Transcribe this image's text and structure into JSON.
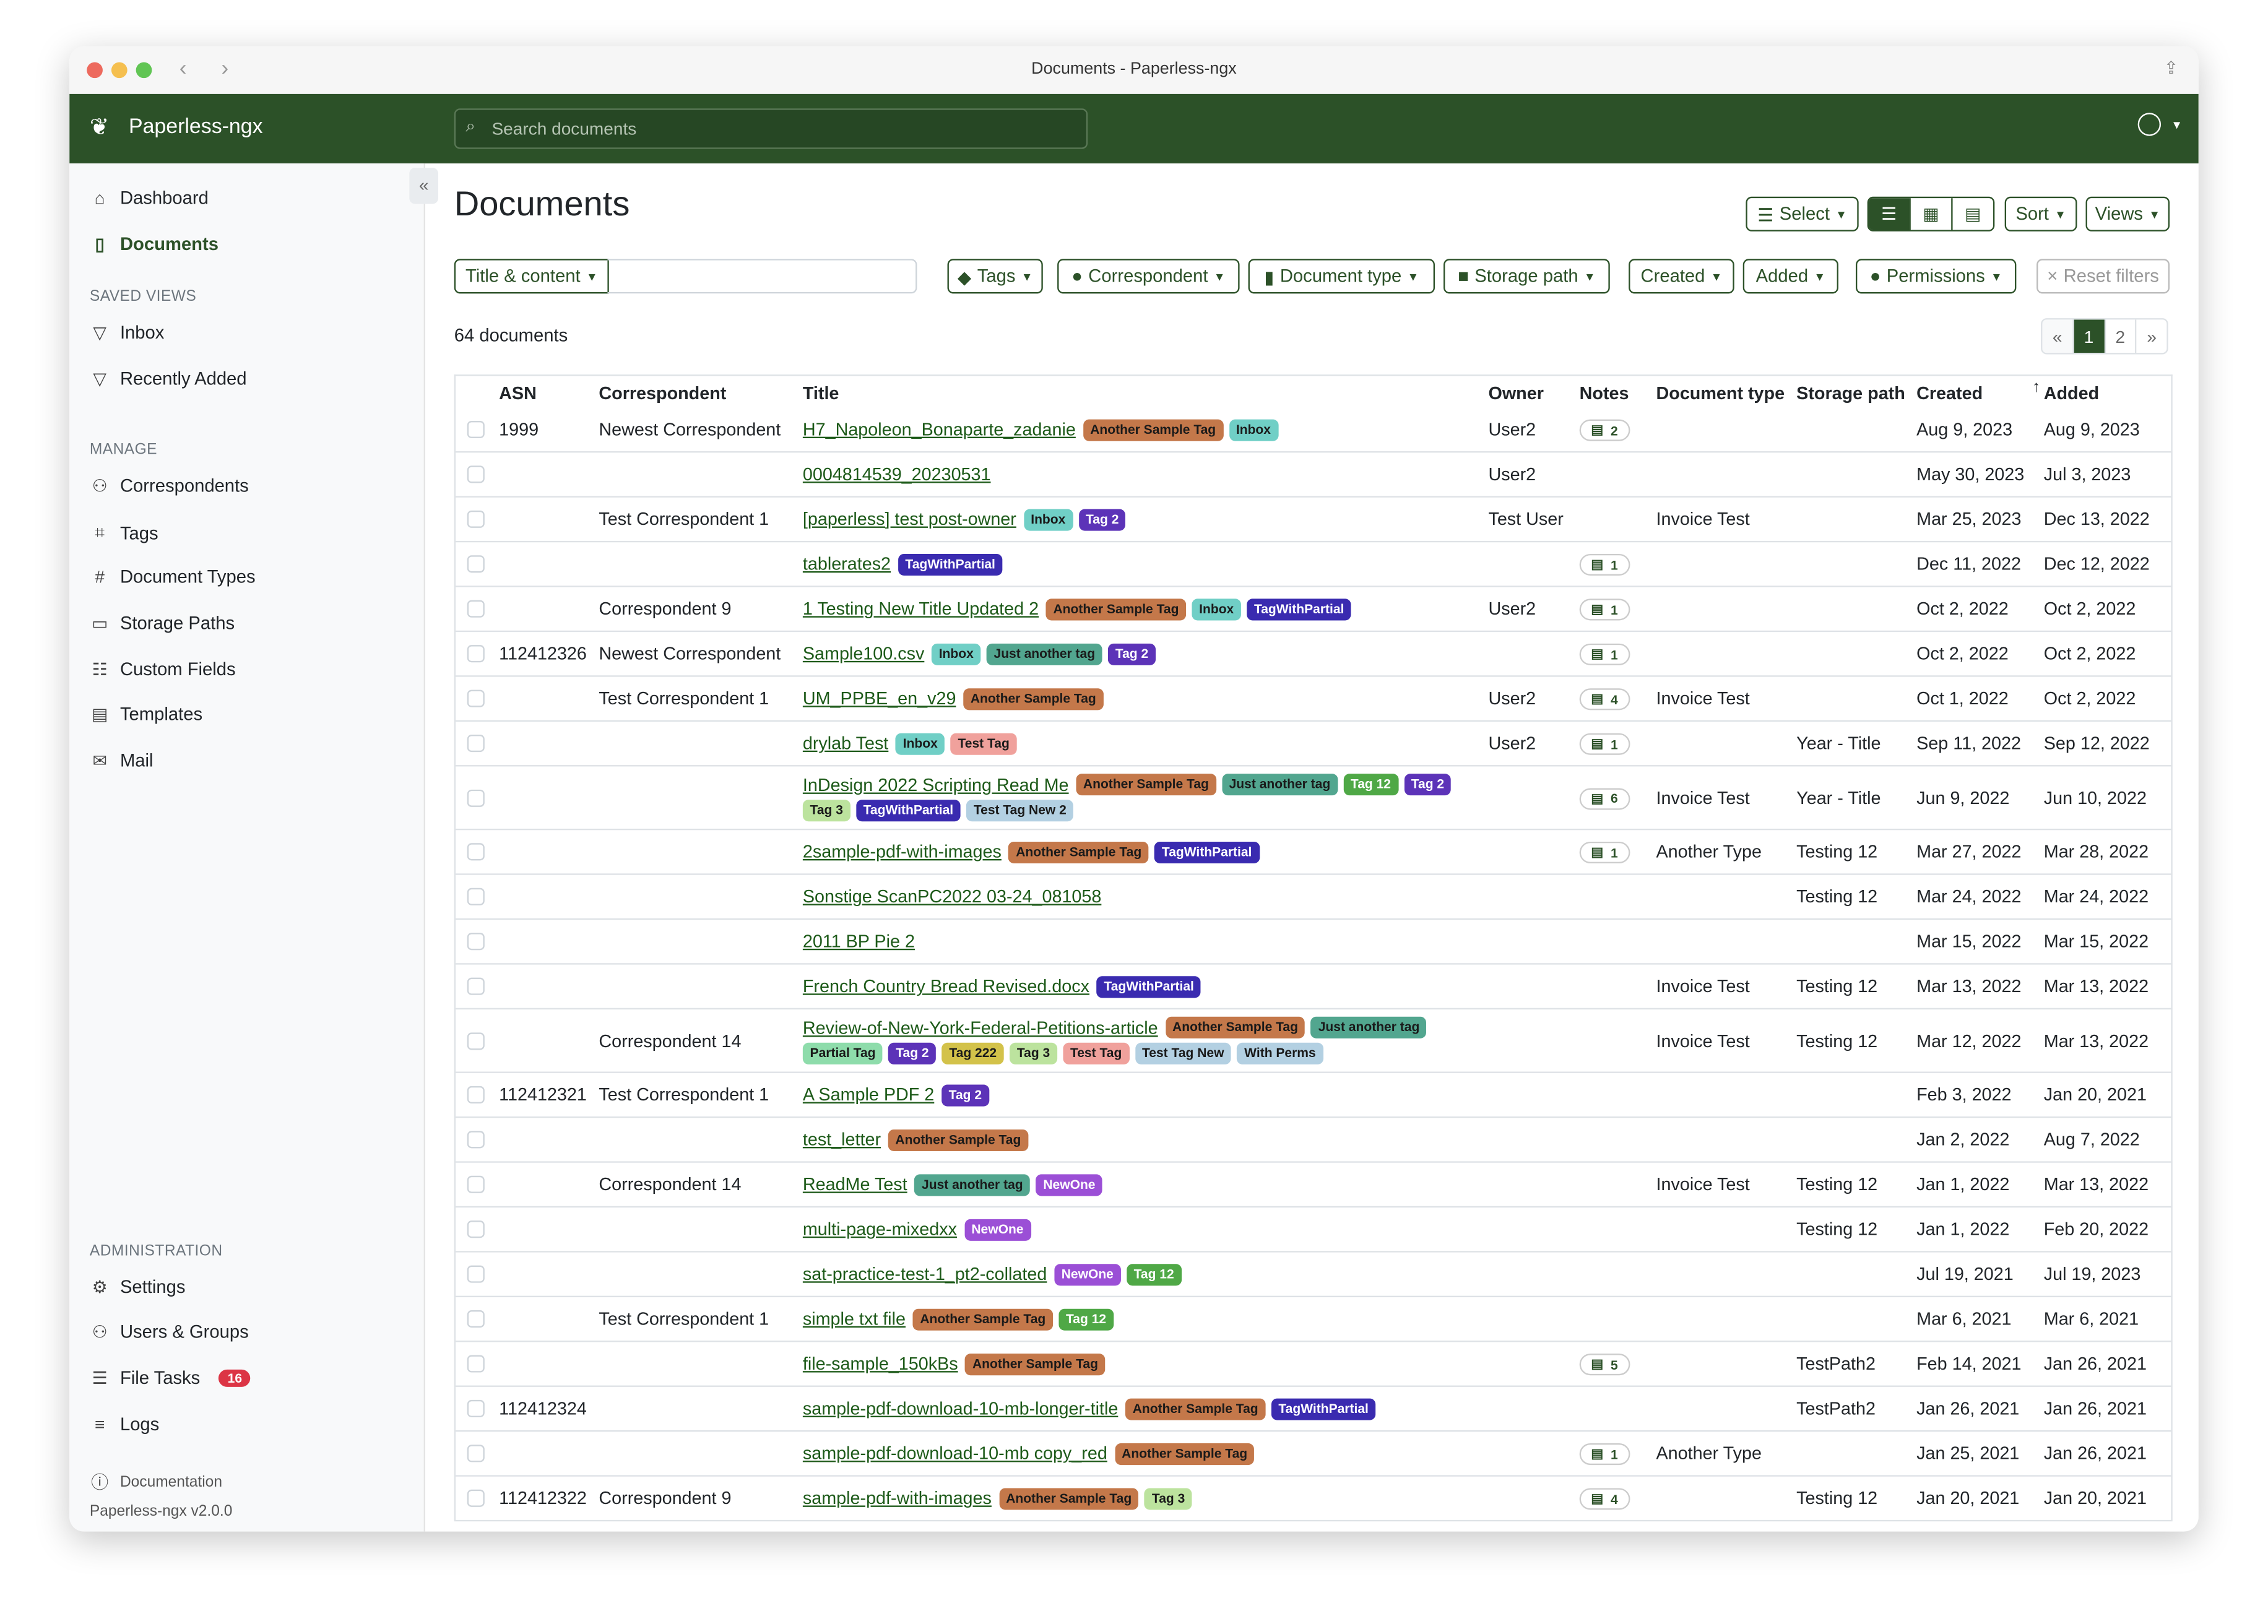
{
  "window": {
    "title": "Documents - Paperless-ngx"
  },
  "header": {
    "brand": "Paperless-ngx",
    "search_placeholder": "Search documents"
  },
  "sidebar": {
    "main": [
      {
        "label": "Dashboard",
        "icon": "house-icon"
      },
      {
        "label": "Documents",
        "icon": "file-icon",
        "active": true
      }
    ],
    "saved_views_heading": "SAVED VIEWS",
    "saved_views": [
      {
        "label": "Inbox",
        "icon": "funnel-icon"
      },
      {
        "label": "Recently Added",
        "icon": "funnel-icon"
      }
    ],
    "manage_heading": "MANAGE",
    "manage": [
      {
        "label": "Correspondents",
        "icon": "person-icon"
      },
      {
        "label": "Tags",
        "icon": "tags-icon"
      },
      {
        "label": "Document Types",
        "icon": "hash-icon"
      },
      {
        "label": "Storage Paths",
        "icon": "folder-icon"
      },
      {
        "label": "Custom Fields",
        "icon": "ui-radios-icon"
      },
      {
        "label": "Templates",
        "icon": "file-text-icon"
      },
      {
        "label": "Mail",
        "icon": "envelope-icon"
      }
    ],
    "admin_heading": "ADMINISTRATION",
    "admin": [
      {
        "label": "Settings",
        "icon": "gear-icon"
      },
      {
        "label": "Users & Groups",
        "icon": "people-icon"
      },
      {
        "label": "File Tasks",
        "icon": "list-icon",
        "badge": "16"
      },
      {
        "label": "Logs",
        "icon": "text-lines-icon"
      }
    ],
    "documentation": "Documentation",
    "version": "Paperless-ngx v2.0.0"
  },
  "page": {
    "title": "Documents",
    "count": "64 documents"
  },
  "toolbar": {
    "select": "Select",
    "sort": "Sort",
    "views": "Views"
  },
  "filters": {
    "text_mode": "Title & content",
    "text_value": "",
    "tags": "Tags",
    "correspondent": "Correspondent",
    "document_type": "Document type",
    "storage_path": "Storage path",
    "created": "Created",
    "added": "Added",
    "permissions": "Permissions",
    "reset": "Reset filters"
  },
  "pagination": {
    "prev": "«",
    "pages": [
      "1",
      "2"
    ],
    "current": "1",
    "next": "»"
  },
  "table": {
    "columns": [
      "ASN",
      "Correspondent",
      "Title",
      "Owner",
      "Notes",
      "Document type",
      "Storage path",
      "Created",
      "Added"
    ],
    "sorted_column": "Added",
    "rows": [
      {
        "asn": "1999",
        "correspondent": "Newest Correspondent",
        "title": "H7_Napoleon_Bonaparte_zadanie",
        "tags": [
          "Another Sample Tag",
          "Inbox"
        ],
        "owner": "User2",
        "notes": "2",
        "doctype": "",
        "storage": "",
        "created": "Aug 9, 2023",
        "added": "Aug 9, 2023"
      },
      {
        "asn": "",
        "correspondent": "",
        "title": "0004814539_20230531",
        "tags": [],
        "owner": "User2",
        "notes": "",
        "doctype": "",
        "storage": "",
        "created": "May 30, 2023",
        "added": "Jul 3, 2023"
      },
      {
        "asn": "",
        "correspondent": "Test Correspondent 1",
        "title": "[paperless] test post-owner",
        "tags": [
          "Inbox",
          "Tag 2"
        ],
        "owner": "Test User",
        "notes": "",
        "doctype": "Invoice Test",
        "storage": "",
        "created": "Mar 25, 2023",
        "added": "Dec 13, 2022"
      },
      {
        "asn": "",
        "correspondent": "",
        "title": "tablerates2",
        "tags": [
          "TagWithPartial"
        ],
        "owner": "",
        "notes": "1",
        "doctype": "",
        "storage": "",
        "created": "Dec 11, 2022",
        "added": "Dec 12, 2022"
      },
      {
        "asn": "",
        "correspondent": "Correspondent 9",
        "title": "1 Testing New Title Updated 2",
        "tags": [
          "Another Sample Tag",
          "Inbox",
          "TagWithPartial"
        ],
        "owner": "User2",
        "notes": "1",
        "doctype": "",
        "storage": "",
        "created": "Oct 2, 2022",
        "added": "Oct 2, 2022"
      },
      {
        "asn": "112412326",
        "correspondent": "Newest Correspondent",
        "title": "Sample100.csv",
        "tags": [
          "Inbox",
          "Just another tag",
          "Tag 2"
        ],
        "owner": "",
        "notes": "1",
        "doctype": "",
        "storage": "",
        "created": "Oct 2, 2022",
        "added": "Oct 2, 2022"
      },
      {
        "asn": "",
        "correspondent": "Test Correspondent 1",
        "title": "UM_PPBE_en_v29",
        "tags": [
          "Another Sample Tag"
        ],
        "owner": "User2",
        "notes": "4",
        "doctype": "Invoice Test",
        "storage": "",
        "created": "Oct 1, 2022",
        "added": "Oct 2, 2022"
      },
      {
        "asn": "",
        "correspondent": "",
        "title": "drylab Test",
        "tags": [
          "Inbox",
          "Test Tag"
        ],
        "owner": "User2",
        "notes": "1",
        "doctype": "",
        "storage": "Year - Title",
        "created": "Sep 11, 2022",
        "added": "Sep 12, 2022"
      },
      {
        "asn": "",
        "correspondent": "",
        "title": "InDesign 2022 Scripting Read Me",
        "tags": [
          "Another Sample Tag",
          "Just another tag",
          "Tag 12",
          "Tag 2",
          "Tag 3",
          "TagWithPartial",
          "Test Tag New 2"
        ],
        "owner": "",
        "notes": "6",
        "doctype": "Invoice Test",
        "storage": "Year - Title",
        "created": "Jun 9, 2022",
        "added": "Jun 10, 2022"
      },
      {
        "asn": "",
        "correspondent": "",
        "title": "2sample-pdf-with-images",
        "tags": [
          "Another Sample Tag",
          "TagWithPartial"
        ],
        "owner": "",
        "notes": "1",
        "doctype": "Another Type",
        "storage": "Testing 12",
        "created": "Mar 27, 2022",
        "added": "Mar 28, 2022"
      },
      {
        "asn": "",
        "correspondent": "",
        "title": "Sonstige ScanPC2022 03-24_081058",
        "tags": [],
        "owner": "",
        "notes": "",
        "doctype": "",
        "storage": "Testing 12",
        "created": "Mar 24, 2022",
        "added": "Mar 24, 2022"
      },
      {
        "asn": "",
        "correspondent": "",
        "title": "2011 BP Pie 2",
        "tags": [],
        "owner": "",
        "notes": "",
        "doctype": "",
        "storage": "",
        "created": "Mar 15, 2022",
        "added": "Mar 15, 2022"
      },
      {
        "asn": "",
        "correspondent": "",
        "title": "French Country Bread Revised.docx",
        "tags": [
          "TagWithPartial"
        ],
        "owner": "",
        "notes": "",
        "doctype": "Invoice Test",
        "storage": "Testing 12",
        "created": "Mar 13, 2022",
        "added": "Mar 13, 2022"
      },
      {
        "asn": "",
        "correspondent": "Correspondent 14",
        "title": "Review-of-New-York-Federal-Petitions-article",
        "tags": [
          "Another Sample Tag",
          "Just another tag",
          "Partial Tag",
          "Tag 2",
          "Tag 222",
          "Tag 3",
          "Test Tag",
          "Test Tag New",
          "With Perms"
        ],
        "owner": "",
        "notes": "",
        "doctype": "Invoice Test",
        "storage": "Testing 12",
        "created": "Mar 12, 2022",
        "added": "Mar 13, 2022"
      },
      {
        "asn": "112412321",
        "correspondent": "Test Correspondent 1",
        "title": "A Sample PDF 2",
        "tags": [
          "Tag 2"
        ],
        "owner": "",
        "notes": "",
        "doctype": "",
        "storage": "",
        "created": "Feb 3, 2022",
        "added": "Jan 20, 2021"
      },
      {
        "asn": "",
        "correspondent": "",
        "title": "test_letter",
        "tags": [
          "Another Sample Tag"
        ],
        "owner": "",
        "notes": "",
        "doctype": "",
        "storage": "",
        "created": "Jan 2, 2022",
        "added": "Aug 7, 2022"
      },
      {
        "asn": "",
        "correspondent": "Correspondent 14",
        "title": "ReadMe Test",
        "tags": [
          "Just another tag",
          "NewOne"
        ],
        "owner": "",
        "notes": "",
        "doctype": "Invoice Test",
        "storage": "Testing 12",
        "created": "Jan 1, 2022",
        "added": "Mar 13, 2022"
      },
      {
        "asn": "",
        "correspondent": "",
        "title": "multi-page-mixedxx",
        "tags": [
          "NewOne"
        ],
        "owner": "",
        "notes": "",
        "doctype": "",
        "storage": "Testing 12",
        "created": "Jan 1, 2022",
        "added": "Feb 20, 2022"
      },
      {
        "asn": "",
        "correspondent": "",
        "title": "sat-practice-test-1_pt2-collated",
        "tags": [
          "NewOne",
          "Tag 12"
        ],
        "owner": "",
        "notes": "",
        "doctype": "",
        "storage": "",
        "created": "Jul 19, 2021",
        "added": "Jul 19, 2023"
      },
      {
        "asn": "",
        "correspondent": "Test Correspondent 1",
        "title": "simple txt file",
        "tags": [
          "Another Sample Tag",
          "Tag 12"
        ],
        "owner": "",
        "notes": "",
        "doctype": "",
        "storage": "",
        "created": "Mar 6, 2021",
        "added": "Mar 6, 2021"
      },
      {
        "asn": "",
        "correspondent": "",
        "title": "file-sample_150kBs",
        "tags": [
          "Another Sample Tag"
        ],
        "owner": "",
        "notes": "5",
        "doctype": "",
        "storage": "TestPath2",
        "created": "Feb 14, 2021",
        "added": "Jan 26, 2021"
      },
      {
        "asn": "112412324",
        "correspondent": "",
        "title": "sample-pdf-download-10-mb-longer-title",
        "tags": [
          "Another Sample Tag",
          "TagWithPartial"
        ],
        "owner": "",
        "notes": "",
        "doctype": "",
        "storage": "TestPath2",
        "created": "Jan 26, 2021",
        "added": "Jan 26, 2021"
      },
      {
        "asn": "",
        "correspondent": "",
        "title": "sample-pdf-download-10-mb copy_red",
        "tags": [
          "Another Sample Tag"
        ],
        "owner": "",
        "notes": "1",
        "doctype": "Another Type",
        "storage": "",
        "created": "Jan 25, 2021",
        "added": "Jan 26, 2021"
      },
      {
        "asn": "112412322",
        "correspondent": "Correspondent 9",
        "title": "sample-pdf-with-images",
        "tags": [
          "Another Sample Tag",
          "Tag 3"
        ],
        "owner": "",
        "notes": "4",
        "doctype": "",
        "storage": "Testing 12",
        "created": "Jan 20, 2021",
        "added": "Jan 20, 2021"
      }
    ]
  },
  "tag_colors": {
    "Another Sample Tag": {
      "bg": "#c4784a",
      "fg": "#1a1a1a"
    },
    "Inbox": {
      "bg": "#70cfc6",
      "fg": "#1a1a1a"
    },
    "Tag 2": {
      "bg": "#5c33b8",
      "fg": "#ffffff"
    },
    "TagWithPartial": {
      "bg": "#3a2bb0",
      "fg": "#ffffff"
    },
    "Just another tag": {
      "bg": "#52a68f",
      "fg": "#1a1a1a"
    },
    "Test Tag": {
      "bg": "#f0a19c",
      "fg": "#1a1a1a"
    },
    "Tag 12": {
      "bg": "#4fa846",
      "fg": "#ffffff"
    },
    "Tag 3": {
      "bg": "#bce39e",
      "fg": "#1a1a1a"
    },
    "Test Tag New 2": {
      "bg": "#b3d0e2",
      "fg": "#1a1a1a"
    },
    "Partial Tag": {
      "bg": "#8edcab",
      "fg": "#1a1a1a"
    },
    "Tag 222": {
      "bg": "#d3c24a",
      "fg": "#1a1a1a"
    },
    "Test Tag New": {
      "bg": "#b3d0e2",
      "fg": "#1a1a1a"
    },
    "With Perms": {
      "bg": "#b3d0e2",
      "fg": "#1a1a1a"
    },
    "NewOne": {
      "bg": "#9b4fd6",
      "fg": "#ffffff"
    }
  },
  "colors": {
    "primary": "#2c5128",
    "link": "#1d5a19"
  }
}
